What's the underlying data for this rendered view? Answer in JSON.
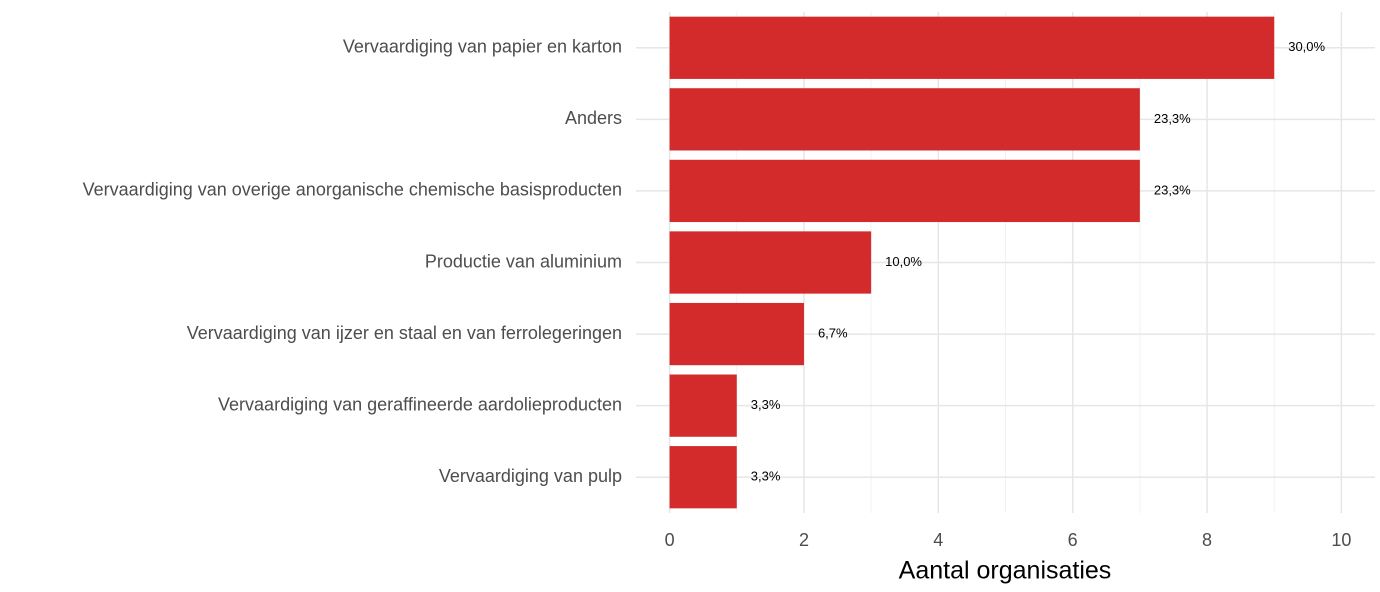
{
  "chart_data": {
    "type": "barh",
    "categories": [
      "Vervaardiging van papier en karton",
      "Anders",
      "Vervaardiging van overige anorganische chemische basisproducten",
      "Productie van aluminium",
      "Vervaardiging van ijzer en staal en van ferrolegeringen",
      "Vervaardiging van geraffineerde aardolieproducten",
      "Vervaardiging van pulp"
    ],
    "values": [
      9,
      7,
      7,
      3,
      2,
      1,
      1
    ],
    "value_labels": [
      "30,0%",
      "23,3%",
      "23,3%",
      "10,0%",
      "6,7%",
      "3,3%",
      "3,3%"
    ],
    "color": "#d32b2b",
    "xlabel": "Aantal organisaties",
    "xlim": [
      -0.5,
      10.5
    ],
    "xticks": [
      0,
      2,
      4,
      6,
      8,
      10
    ],
    "minor_xticks": [
      1,
      3,
      5,
      7,
      9
    ],
    "grid": true
  }
}
